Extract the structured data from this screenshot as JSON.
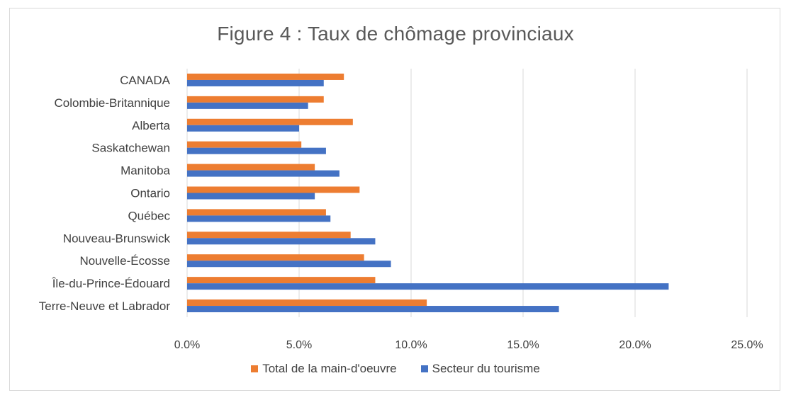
{
  "chart_data": {
    "type": "bar",
    "orientation": "horizontal",
    "title": "Figure 4 : Taux de chômage provinciaux",
    "categories": [
      "CANADA",
      "Colombie-Britannique",
      "Alberta",
      "Saskatchewan",
      "Manitoba",
      "Ontario",
      "Québec",
      "Nouveau-Brunswick",
      "Nouvelle-Écosse",
      "Île-du-Prince-Édouard",
      "Terre-Neuve et Labrador"
    ],
    "series": [
      {
        "name": "Total de la main-d'oeuvre",
        "color": "#ED7D31",
        "values": [
          0.07,
          0.061,
          0.074,
          0.051,
          0.057,
          0.077,
          0.062,
          0.073,
          0.079,
          0.084,
          0.107
        ]
      },
      {
        "name": "Secteur du tourisme",
        "color": "#4472C4",
        "values": [
          0.061,
          0.054,
          0.05,
          0.062,
          0.068,
          0.057,
          0.064,
          0.084,
          0.091,
          0.215,
          0.166
        ]
      }
    ],
    "xlim": [
      0,
      0.25
    ],
    "xticks": [
      0,
      0.05,
      0.1,
      0.15,
      0.2,
      0.25
    ],
    "xtick_labels": [
      "0.0%",
      "5.0%",
      "10.0%",
      "15.0%",
      "20.0%",
      "25.0%"
    ],
    "grid": true,
    "legend_position": "bottom",
    "gridline_color": "#d9d9d9"
  }
}
